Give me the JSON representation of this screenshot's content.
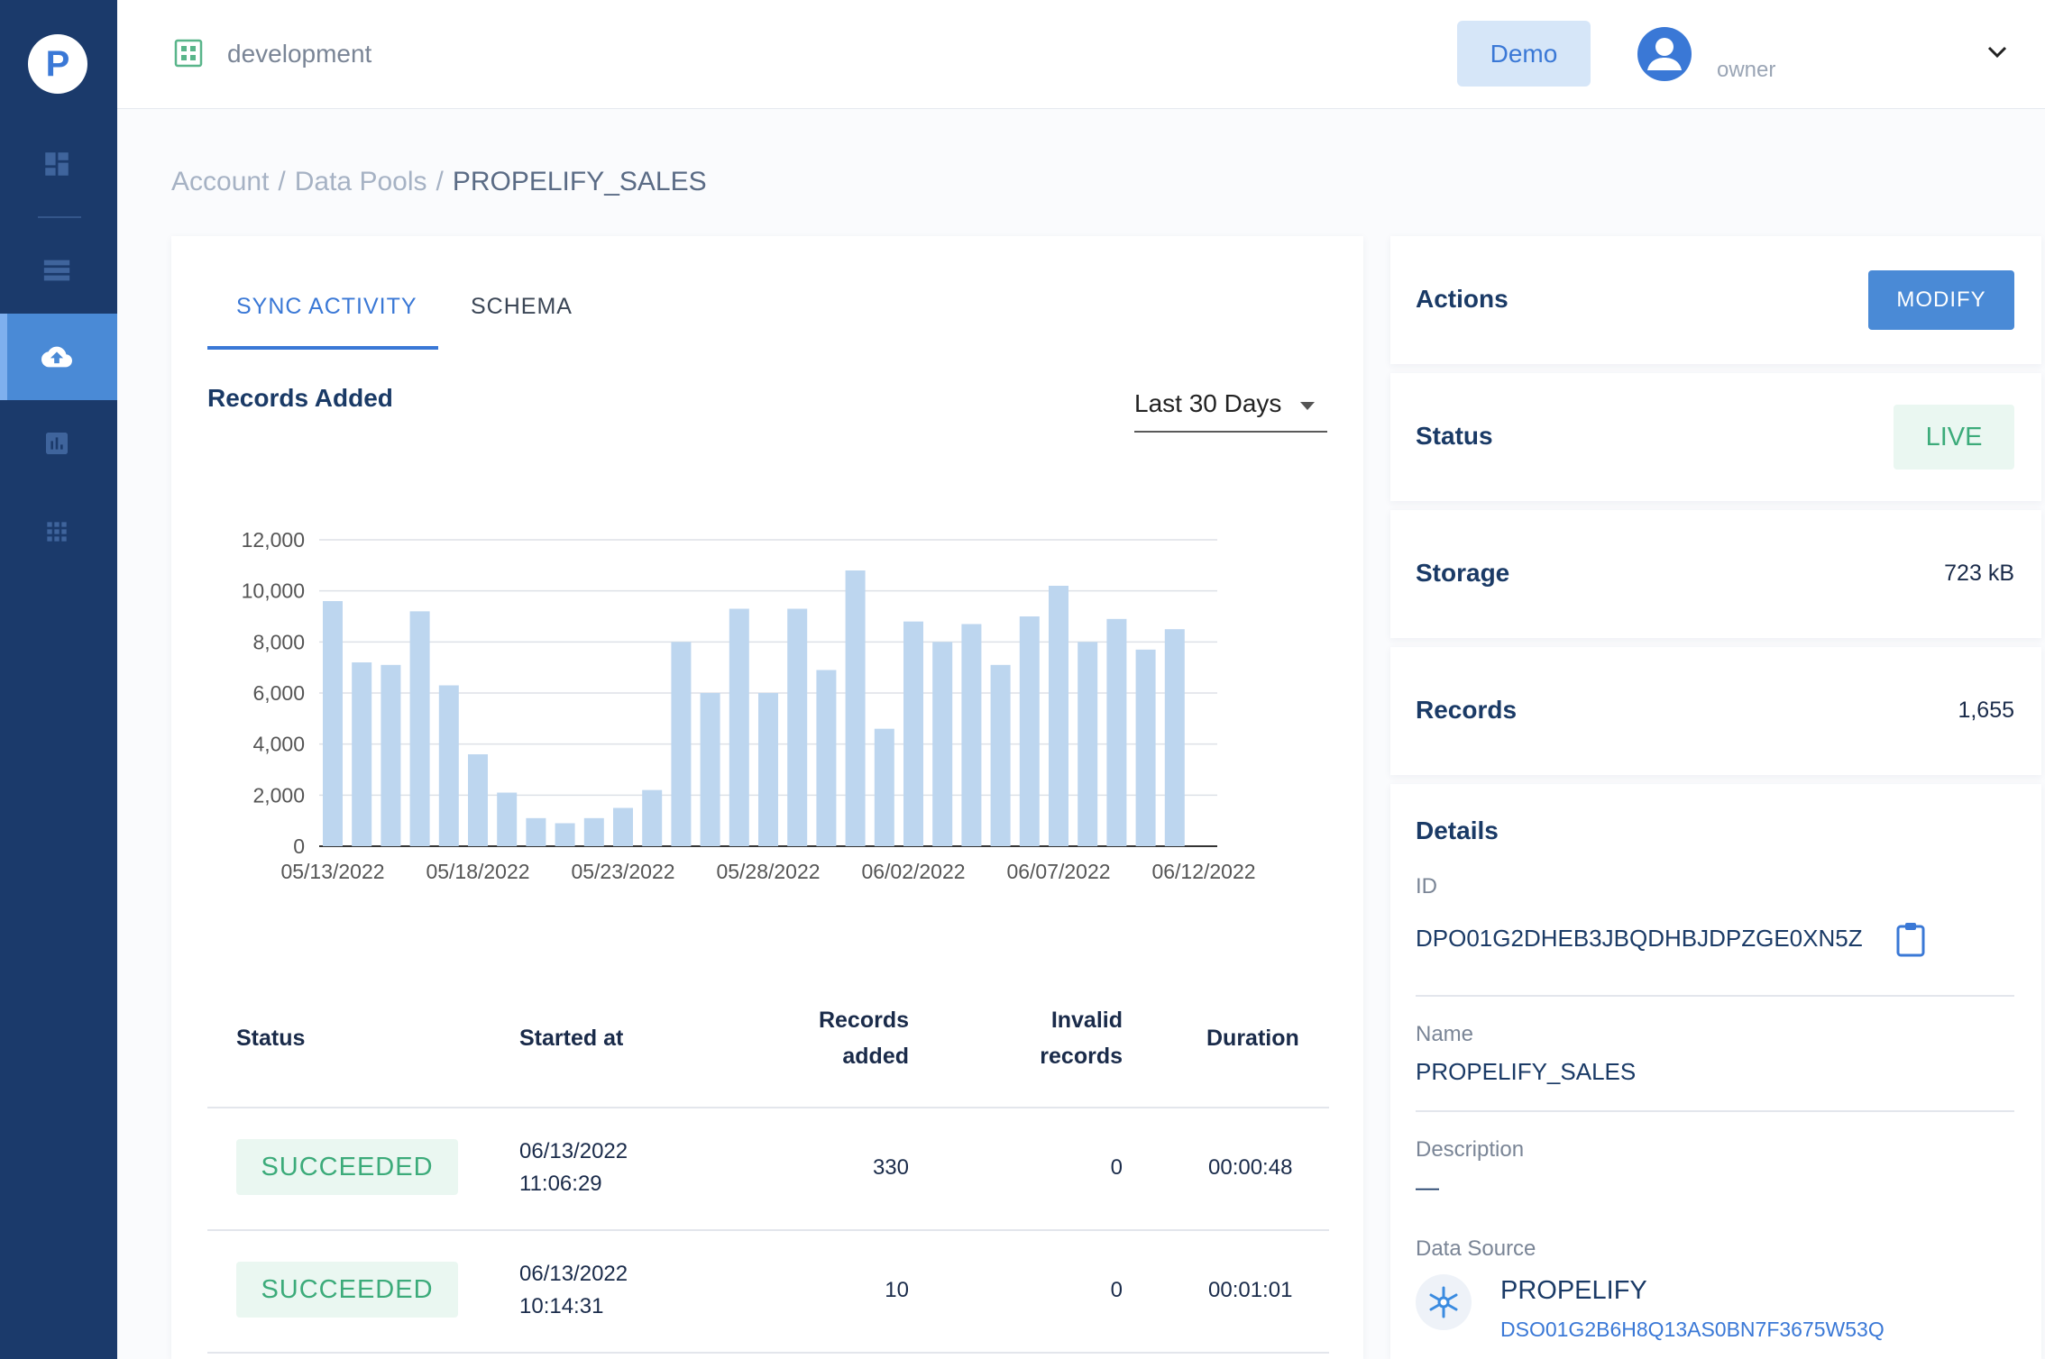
{
  "app": {
    "logo_letter": "P"
  },
  "sidebar": {
    "items": [
      {
        "icon": "dashboard-icon"
      },
      {
        "icon": "list-icon"
      },
      {
        "icon": "cloud-upload-icon",
        "active": true
      },
      {
        "icon": "bar-chart-icon"
      },
      {
        "icon": "grid-apps-icon"
      }
    ]
  },
  "topbar": {
    "environment": "development",
    "demo_label": "Demo",
    "user_role": "owner"
  },
  "breadcrumb": {
    "items": [
      "Account",
      "Data Pools",
      "PROPELIFY_SALES"
    ],
    "separator": "/"
  },
  "main": {
    "tabs": [
      "SYNC ACTIVITY",
      "SCHEMA"
    ],
    "section_title": "Records Added",
    "range": "Last 30 Days"
  },
  "chart_data": {
    "type": "bar",
    "title": "Records Added",
    "xlabel": "",
    "ylabel": "",
    "ylim": [
      0,
      12000
    ],
    "yticks": [
      0,
      2000,
      4000,
      6000,
      8000,
      10000,
      12000
    ],
    "ytick_labels": [
      "0",
      "2,000",
      "4,000",
      "6,000",
      "8,000",
      "10,000",
      "12,000"
    ],
    "xtick_labels": [
      "05/13/2022",
      "05/18/2022",
      "05/23/2022",
      "05/28/2022",
      "06/02/2022",
      "06/07/2022",
      "06/12/2022"
    ],
    "xtick_every": 5,
    "values": [
      9600,
      7200,
      7100,
      9200,
      6300,
      3600,
      2100,
      1100,
      900,
      1100,
      1500,
      2200,
      8000,
      6000,
      9300,
      6000,
      9300,
      6900,
      10800,
      4600,
      8800,
      8000,
      8700,
      7100,
      9000,
      10200,
      8000,
      8900,
      7700,
      8500
    ],
    "color": "#bdd6ef",
    "grid": true
  },
  "table": {
    "headers": {
      "status": "Status",
      "started": "Started at",
      "records_l1": "Records",
      "records_l2": "added",
      "invalid_l1": "Invalid",
      "invalid_l2": "records",
      "duration": "Duration"
    },
    "rows": [
      {
        "status": "SUCCEEDED",
        "date": "06/13/2022",
        "time": "11:06:29",
        "records": "330",
        "invalid": "0",
        "duration": "00:00:48"
      },
      {
        "status": "SUCCEEDED",
        "date": "06/13/2022",
        "time": "10:14:31",
        "records": "10",
        "invalid": "0",
        "duration": "00:01:01"
      }
    ]
  },
  "right": {
    "actions": {
      "label": "Actions",
      "button": "MODIFY"
    },
    "status": {
      "label": "Status",
      "value": "LIVE"
    },
    "storage": {
      "label": "Storage",
      "value": "723 kB"
    },
    "records": {
      "label": "Records",
      "value": "1,655"
    },
    "details": {
      "title": "Details",
      "id_label": "ID",
      "id_value": "DPO01G2DHEB3JBQDHBJDPZGE0XN5Z",
      "name_label": "Name",
      "name_value": "PROPELIFY_SALES",
      "description_label": "Description",
      "description_value": "—",
      "datasource_label": "Data Source",
      "datasource_name": "PROPELIFY",
      "datasource_id": "DSO01G2B6H8Q13AS0BN7F3675W53Q"
    }
  },
  "colors": {
    "sidebar": "#1b3a6b",
    "accent": "#3a78d6",
    "success": "#3cab7a",
    "success_bg": "#eaf7f1"
  }
}
